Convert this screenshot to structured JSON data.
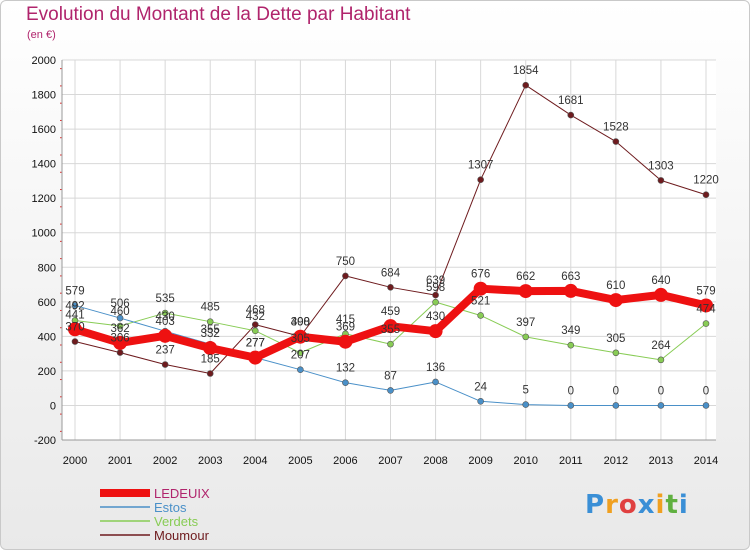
{
  "title": "Evolution du Montant de la Dette par Habitant",
  "subtitle": "(en €)",
  "logo": {
    "text": "Proxiti",
    "colors": [
      "#3a8fd6",
      "#f0a020",
      "#e04040",
      "#3a8fd6",
      "#f0a020",
      "#60b040",
      "#3a8fd6"
    ]
  },
  "chart_data": {
    "type": "line",
    "x": [
      "2000",
      "2001",
      "2002",
      "2003",
      "2004",
      "2005",
      "2006",
      "2007",
      "2008",
      "2009",
      "2010",
      "2011",
      "2012",
      "2013",
      "2014"
    ],
    "ylim": [
      -200,
      2000
    ],
    "yticks": [
      -200,
      0,
      200,
      400,
      600,
      800,
      1000,
      1200,
      1400,
      1600,
      1800,
      2000
    ],
    "grid": true,
    "legend_position": "bottom-left",
    "series": [
      {
        "name": "LEDEUIX",
        "color": "#ee1111",
        "width": 8,
        "values": [
          441,
          362,
          403,
          332,
          277,
          398,
          369,
          459,
          430,
          676,
          662,
          663,
          610,
          640,
          579
        ]
      },
      {
        "name": "Estos",
        "color": "#4a90c8",
        "width": 1,
        "values": [
          579,
          506,
          430,
          355,
          277,
          207,
          132,
          87,
          136,
          24,
          5,
          0,
          0,
          0,
          0
        ]
      },
      {
        "name": "Verdets",
        "color": "#88cc55",
        "width": 1,
        "values": [
          492,
          460,
          535,
          485,
          432,
          305,
          415,
          355,
          598,
          521,
          397,
          349,
          305,
          264,
          474
        ]
      },
      {
        "name": "Moumour",
        "color": "#6e1b1e",
        "width": 1,
        "values": [
          370,
          306,
          237,
          185,
          468,
          400,
          750,
          684,
          639,
          1307,
          1854,
          1681,
          1528,
          1303,
          1220
        ]
      }
    ]
  }
}
